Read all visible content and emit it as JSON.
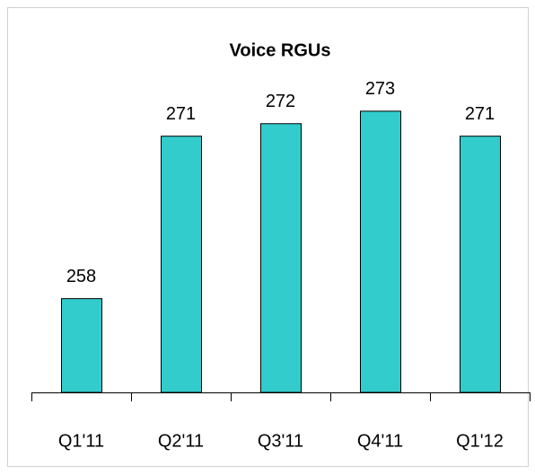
{
  "chart_data": {
    "type": "bar",
    "title": "Voice RGUs",
    "categories": [
      "Q1'11",
      "Q2'11",
      "Q3'11",
      "Q4'11",
      "Q1'12"
    ],
    "values": [
      258,
      271,
      272,
      273,
      271
    ],
    "color": "#33cccc",
    "ylim": [
      250.5,
      275
    ]
  }
}
